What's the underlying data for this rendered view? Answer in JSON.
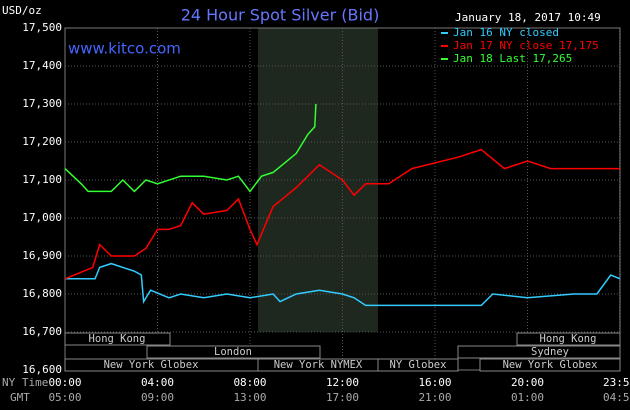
{
  "chart_data": {
    "type": "line",
    "title": "24 Hour Spot Silver (Bid)",
    "y_label": "USD/oz",
    "timestamp": "January 18, 2017 10:49",
    "source": "www.kitco.com",
    "x_row_label": "NY Time",
    "x2_row_label": "GMT",
    "xlim": [
      0,
      24
    ],
    "xticks": [
      {
        "value": 0,
        "label": "00:00"
      },
      {
        "value": 4,
        "label": "04:00"
      },
      {
        "value": 8,
        "label": "08:00"
      },
      {
        "value": 12,
        "label": "12:00"
      },
      {
        "value": 16,
        "label": "16:00"
      },
      {
        "value": 20,
        "label": "20:00"
      },
      {
        "value": 23.983,
        "label": "23:59"
      }
    ],
    "x2ticks": [
      "05:00",
      "09:00",
      "13:00",
      "17:00",
      "21:00",
      "01:00",
      "04:59"
    ],
    "ylim": [
      16.6,
      17.5
    ],
    "yticks": [
      {
        "value": 16.6,
        "label": "16,600"
      },
      {
        "value": 16.7,
        "label": "16,700"
      },
      {
        "value": 16.8,
        "label": "16,800"
      },
      {
        "value": 16.9,
        "label": "16,900"
      },
      {
        "value": 17.0,
        "label": "17,000"
      },
      {
        "value": 17.1,
        "label": "17,100"
      },
      {
        "value": 17.2,
        "label": "17,200"
      },
      {
        "value": 17.3,
        "label": "17,300"
      },
      {
        "value": 17.4,
        "label": "17,400"
      },
      {
        "value": 17.5,
        "label": "17,500"
      }
    ],
    "grid": true,
    "sessions": [
      "Hong Kong",
      "Hong Kong",
      "London",
      "Sydney",
      "New York Globex",
      "New York NYMEX",
      "NY Globex",
      "New York Globex"
    ],
    "series": [
      {
        "name": "Jan 16 NY closed",
        "color": "#33ccff",
        "x": [
          0,
          1.3,
          1.5,
          2,
          3,
          3.3,
          3.4,
          3.7,
          4.5,
          5,
          6,
          7,
          8,
          9,
          9.3,
          10,
          11,
          12,
          12.5,
          13,
          18,
          18.5,
          20,
          22,
          23,
          23.6,
          24
        ],
        "values": [
          16.84,
          16.84,
          16.87,
          16.88,
          16.86,
          16.85,
          16.78,
          16.81,
          16.79,
          16.8,
          16.79,
          16.8,
          16.79,
          16.8,
          16.78,
          16.8,
          16.81,
          16.8,
          16.79,
          16.77,
          16.77,
          16.8,
          16.79,
          16.8,
          16.8,
          16.85,
          16.84
        ]
      },
      {
        "name": "Jan 17 NY close 17,175",
        "color": "#ff0000",
        "x": [
          0,
          1.2,
          1.5,
          2,
          3,
          3.5,
          4,
          4.5,
          5,
          5.5,
          6,
          7,
          7.5,
          8,
          8.3,
          9,
          10,
          11,
          12,
          12.5,
          13,
          14,
          15,
          17,
          18,
          19,
          20,
          21,
          22,
          23,
          24
        ],
        "values": [
          16.84,
          16.87,
          16.93,
          16.9,
          16.9,
          16.92,
          16.97,
          16.97,
          16.98,
          17.04,
          17.01,
          17.02,
          17.05,
          16.97,
          16.93,
          17.03,
          17.08,
          17.14,
          17.1,
          17.06,
          17.09,
          17.09,
          17.13,
          17.16,
          17.18,
          17.13,
          17.15,
          17.13,
          17.13,
          17.13,
          17.13
        ]
      },
      {
        "name": "Jan 18 Last 17,265",
        "color": "#33ff33",
        "x": [
          0,
          0.7,
          1,
          2,
          2.5,
          3,
          3.5,
          4,
          5,
          6,
          7,
          7.5,
          8,
          8.5,
          9,
          10,
          10.5,
          10.8,
          10.85
        ],
        "values": [
          17.13,
          17.09,
          17.07,
          17.07,
          17.1,
          17.07,
          17.1,
          17.09,
          17.11,
          17.11,
          17.1,
          17.11,
          17.07,
          17.11,
          17.12,
          17.17,
          17.22,
          17.24,
          17.3
        ]
      }
    ]
  }
}
